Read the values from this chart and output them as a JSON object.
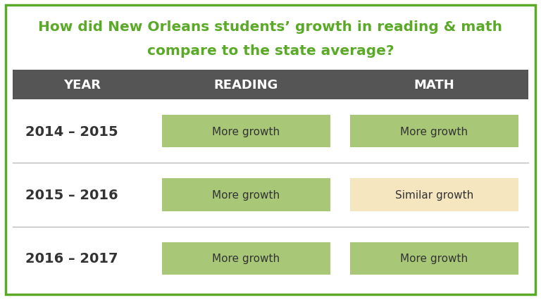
{
  "title_line1": "How did New Orleans students’ growth in reading & math",
  "title_line2": "compare to the state average?",
  "title_color": "#5aaa28",
  "header_bg_color": "#555555",
  "header_text_color": "#ffffff",
  "header_labels": [
    "YEAR",
    "READING",
    "MATH"
  ],
  "years": [
    "2014 – 2015",
    "2015 – 2016",
    "2016 – 2017"
  ],
  "reading_labels": [
    "More growth",
    "More growth",
    "More growth"
  ],
  "math_labels": [
    "More growth",
    "Similar growth",
    "More growth"
  ],
  "reading_box_color": "#a8c878",
  "math_box_color_more": "#a8c878",
  "math_box_color_similar": "#f5e6c0",
  "row_divider_color": "#bbbbbb",
  "outer_border_color": "#5aaa28",
  "background_color": "#ffffff",
  "year_text_color": "#333333",
  "cell_text_color": "#333333"
}
